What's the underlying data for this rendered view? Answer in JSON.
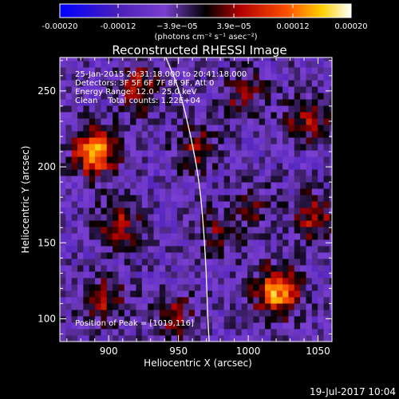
{
  "chart_data": {
    "type": "heatmap",
    "title": "Reconstructed RHESSI Image",
    "xlabel": "Heliocentric X (arcsec)",
    "ylabel": "Heliocentric Y (arcsec)",
    "xlim": [
      865,
      1060
    ],
    "ylim": [
      85,
      272
    ],
    "xticks": [
      900,
      950,
      1000,
      1050
    ],
    "yticks": [
      100,
      150,
      200,
      250
    ],
    "colorbar": {
      "range": [
        -0.0002,
        0.0002
      ],
      "ticks": [
        "-0.00020",
        "-0.00012",
        "−3.9e−05",
        "3.9e−05",
        "0.00012",
        "0.00020"
      ],
      "tick_values": [
        -0.0002,
        -0.00012,
        -3.9e-05,
        3.9e-05,
        0.00012,
        0.0002
      ],
      "units": "(photons cm⁻² s⁻¹ asec⁻²)",
      "colors": [
        "#0000ff",
        "#4a1fb8",
        "#7a3fd0",
        "#000000",
        "#b00000",
        "#ff5000",
        "#ffd000",
        "#ffffff"
      ]
    },
    "annotations": [
      "25-Jan-2015 20:31:18.000 to 20:41:18.000",
      "Detectors: 3F 5F 6F 7F 8F 9F, Att 0",
      "Energy Range: 12.0 - 25.0 keV",
      "Clean    Total counts: 1.22E+04"
    ],
    "peak_text": "Position of Peak = [1019,116]",
    "peak": [
      1019,
      116
    ],
    "hotspots": [
      {
        "x": 1019,
        "y": 116,
        "v": 0.0002
      },
      {
        "x": 888,
        "y": 208,
        "v": 0.00019
      },
      {
        "x": 905,
        "y": 160,
        "v": 0.0001
      },
      {
        "x": 920,
        "y": 250,
        "v": 0.00011
      },
      {
        "x": 1040,
        "y": 230,
        "v": 0.0001
      },
      {
        "x": 1045,
        "y": 165,
        "v": 0.0001
      },
      {
        "x": 895,
        "y": 110,
        "v": 9e-05
      },
      {
        "x": 960,
        "y": 210,
        "v": 9e-05
      },
      {
        "x": 995,
        "y": 245,
        "v": 8e-05
      },
      {
        "x": 975,
        "y": 155,
        "v": 7e-05
      },
      {
        "x": 945,
        "y": 100,
        "v": 8e-05
      },
      {
        "x": 1000,
        "y": 170,
        "v": 6e-05
      }
    ],
    "limb_curve": [
      [
        941,
        272
      ],
      [
        951,
        250
      ],
      [
        959,
        220
      ],
      [
        965,
        190
      ],
      [
        968,
        160
      ],
      [
        970,
        130
      ],
      [
        971,
        100
      ],
      [
        972,
        85
      ]
    ],
    "footer_date": "19-Jul-2017 10:04"
  }
}
